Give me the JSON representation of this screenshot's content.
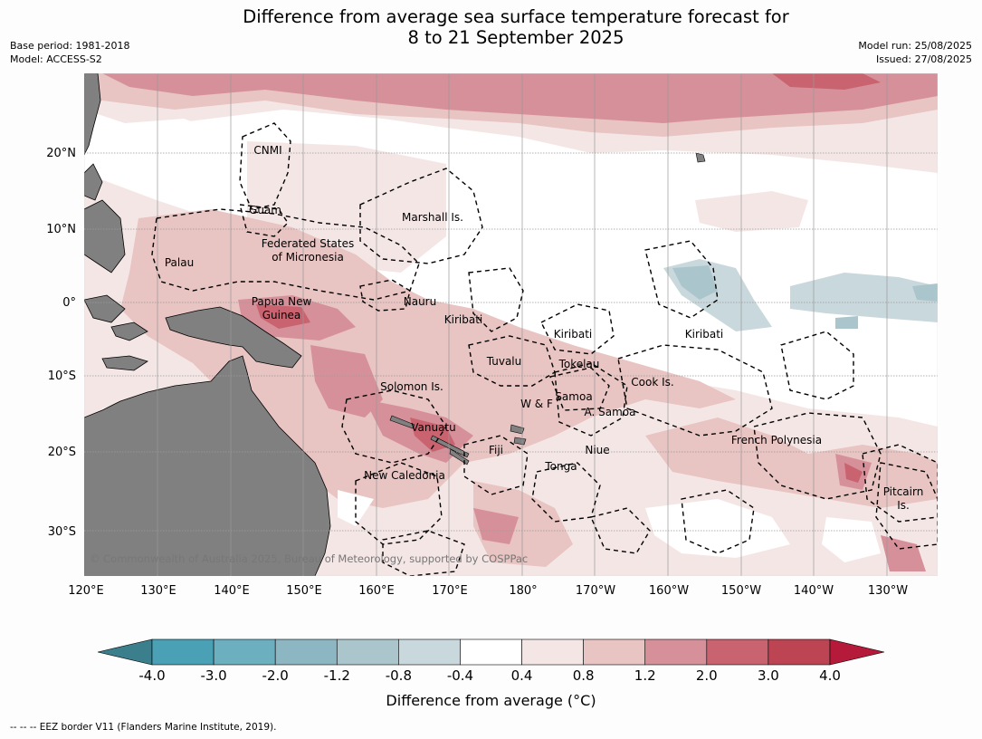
{
  "header": {
    "title_line1": "Difference from average sea surface temperature forecast for",
    "title_line2": "8 to 21 September 2025",
    "base_period": "Base period: 1981-2018",
    "model": "Model: ACCESS-S2",
    "model_run": "Model run: 25/08/2025",
    "issued": "Issued: 27/08/2025"
  },
  "map": {
    "copyright": "© Commonwealth of Australia 2025, Bureau of Meteorology, supported by COSPPac",
    "lat_ticks": [
      "20°N",
      "10°N",
      "0°",
      "10°S",
      "20°S",
      "30°S"
    ],
    "lon_ticks": [
      "120°E",
      "130°E",
      "140°E",
      "150°E",
      "160°E",
      "170°E",
      "180°",
      "170°W",
      "160°W",
      "150°W",
      "140°W",
      "130°W"
    ],
    "region_labels": [
      {
        "name": "CNMI"
      },
      {
        "name": "Guam"
      },
      {
        "name": "Marshall Is."
      },
      {
        "name": "Federated States"
      },
      {
        "name": "of Micronesia"
      },
      {
        "name": "Palau"
      },
      {
        "name": "Nauru"
      },
      {
        "name": "Papua New"
      },
      {
        "name": "Guinea"
      },
      {
        "name": "Kiribati"
      },
      {
        "name": "Kiribati"
      },
      {
        "name": "Kiribati"
      },
      {
        "name": "Tuvalu"
      },
      {
        "name": "Tokelau"
      },
      {
        "name": "Cook Is."
      },
      {
        "name": "Solomon Is."
      },
      {
        "name": "Samoa"
      },
      {
        "name": "W & F"
      },
      {
        "name": "A. Samoa"
      },
      {
        "name": "Vanuatu"
      },
      {
        "name": "Fiji"
      },
      {
        "name": "Niue"
      },
      {
        "name": "French Polynesia"
      },
      {
        "name": "Tonga"
      },
      {
        "name": "New Caledonia"
      },
      {
        "name": "Pitcairn"
      },
      {
        "name": "Is."
      }
    ],
    "colors": {
      "land": "#808080",
      "ocean_neutral": "#ffffff",
      "grid": "#b0b0b0"
    }
  },
  "colorbar": {
    "title": "Difference from average (°C)",
    "tick_labels": [
      "-4.0",
      "-3.0",
      "-2.0",
      "-1.2",
      "-0.8",
      "-0.4",
      "0.4",
      "0.8",
      "1.2",
      "2.0",
      "3.0",
      "4.0"
    ],
    "colors": [
      "#3b7f8c",
      "#4aa0b5",
      "#6cafbf",
      "#8bb6c2",
      "#aac6cc",
      "#c9d8dc",
      "#ffffff",
      "#f5e6e6",
      "#e8c4c2",
      "#d6909a",
      "#c8636f",
      "#bd4553",
      "#b51a3a"
    ]
  },
  "footer": {
    "note": "--  --  -- EEZ border V11 (Flanders Marine Institute, 2019)."
  }
}
